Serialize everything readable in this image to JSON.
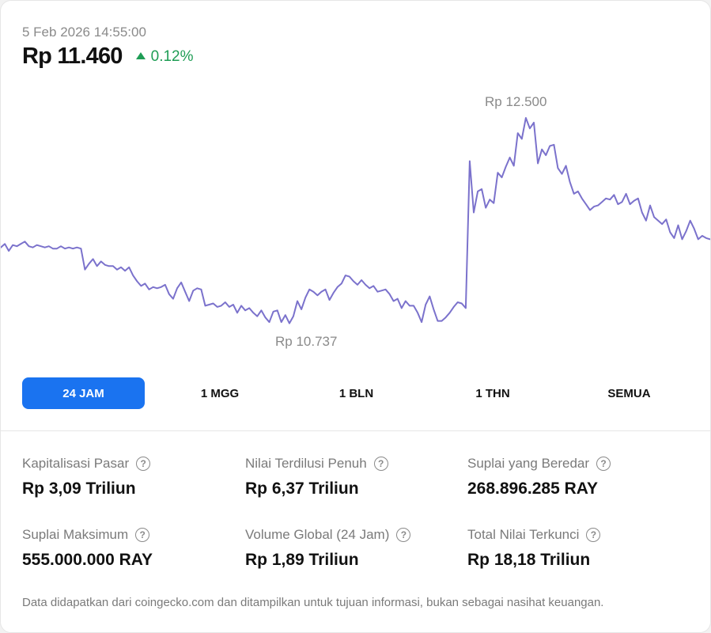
{
  "header": {
    "timestamp": "5 Feb 2026 14:55:00",
    "price": "Rp 11.460",
    "change": "0.12%",
    "change_direction": "up",
    "change_color": "#1f9d55"
  },
  "chart_data": {
    "type": "line",
    "series": [
      {
        "values": [
          11390,
          11420,
          11360,
          11410,
          11400,
          11420,
          11440,
          11400,
          11390,
          11410,
          11400,
          11390,
          11400,
          11380,
          11380,
          11400,
          11380,
          11390,
          11380,
          11390,
          11380,
          11200,
          11250,
          11290,
          11230,
          11270,
          11240,
          11230,
          11230,
          11200,
          11220,
          11190,
          11220,
          11150,
          11100,
          11060,
          11080,
          11030,
          11050,
          11040,
          11050,
          11070,
          10990,
          10950,
          11040,
          11090,
          11010,
          10930,
          11020,
          11040,
          11030,
          10890,
          10900,
          10910,
          10880,
          10890,
          10920,
          10880,
          10900,
          10830,
          10890,
          10850,
          10870,
          10830,
          10800,
          10850,
          10790,
          10750,
          10840,
          10850,
          10750,
          10810,
          10740,
          10800,
          10930,
          10860,
          10960,
          11030,
          11010,
          10980,
          11010,
          11030,
          10940,
          11000,
          11050,
          11080,
          11150,
          11140,
          11100,
          11070,
          11110,
          11070,
          11040,
          11060,
          11010,
          11020,
          11030,
          10990,
          10930,
          10950,
          10870,
          10930,
          10890,
          10890,
          10830,
          10750,
          10900,
          10970,
          10860,
          10760,
          10760,
          10790,
          10830,
          10880,
          10920,
          10910,
          10870,
          12130,
          11690,
          11870,
          11890,
          11730,
          11800,
          11770,
          12030,
          11990,
          12080,
          12160,
          12090,
          12370,
          12320,
          12500,
          12410,
          12460,
          12110,
          12230,
          12180,
          12260,
          12270,
          12070,
          12020,
          12090,
          11950,
          11850,
          11870,
          11810,
          11760,
          11710,
          11740,
          11750,
          11780,
          11810,
          11800,
          11840,
          11760,
          11780,
          11850,
          11760,
          11790,
          11810,
          11690,
          11620,
          11750,
          11650,
          11620,
          11590,
          11630,
          11520,
          11470,
          11580,
          11460,
          11530,
          11620,
          11550,
          11460,
          11490,
          11470,
          11460
        ],
        "color": "#7b72cc"
      }
    ],
    "high_label": "Rp 12.500",
    "low_label": "Rp 10.737",
    "y_max": 12500,
    "y_min": 10737
  },
  "ranges": [
    {
      "label": "24 JAM",
      "active": true
    },
    {
      "label": "1 MGG",
      "active": false
    },
    {
      "label": "1 BLN",
      "active": false
    },
    {
      "label": "1 THN",
      "active": false
    },
    {
      "label": "SEMUA",
      "active": false
    }
  ],
  "stats": {
    "market_cap": {
      "label": "Kapitalisasi Pasar",
      "value": "Rp 3,09 Triliun"
    },
    "fdv": {
      "label": "Nilai Terdilusi Penuh",
      "value": "Rp 6,37 Triliun"
    },
    "circulating": {
      "label": "Suplai yang Beredar",
      "value": "268.896.285 RAY"
    },
    "max_supply": {
      "label": "Suplai Maksimum",
      "value": "555.000.000 RAY"
    },
    "volume": {
      "label": "Volume Global (24 Jam)",
      "value": "Rp 1,89 Triliun"
    },
    "tvl": {
      "label": "Total Nilai Terkunci",
      "value": "Rp 18,18 Triliun"
    }
  },
  "help_glyph": "?",
  "footer": {
    "disclaimer": "Data didapatkan dari coingecko.com dan ditampilkan untuk tujuan informasi, bukan sebagai nasihat keuangan."
  },
  "colors": {
    "accent": "#1a73f0",
    "line": "#7b72cc",
    "up": "#1f9d55"
  }
}
